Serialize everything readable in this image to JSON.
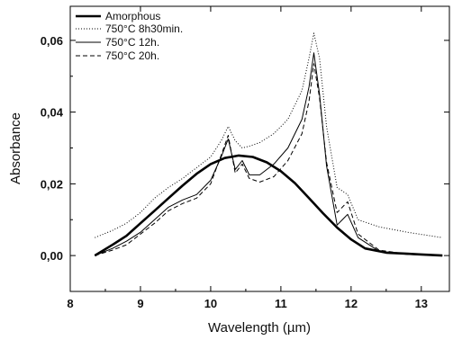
{
  "chart_data": {
    "type": "line",
    "title": "",
    "xlabel": "Wavelength (µm)",
    "ylabel": "Absorbance",
    "xlim": [
      8,
      13.4
    ],
    "ylim": [
      -0.01,
      0.0695
    ],
    "xticks": [
      8,
      9,
      10,
      11,
      12,
      13
    ],
    "xtick_labels": [
      "8",
      "9",
      "10",
      "11",
      "12",
      "13"
    ],
    "yticks": [
      0.0,
      0.02,
      0.04,
      0.06
    ],
    "ytick_labels": [
      "0,00",
      "0,02",
      "0,04",
      "0,06"
    ],
    "grid": false,
    "legend_position": "top-left",
    "series": [
      {
        "name": "Amorphous",
        "style": "thick-solid",
        "color": "#000000",
        "x": [
          8.35,
          8.6,
          8.8,
          9.0,
          9.2,
          9.4,
          9.6,
          9.8,
          10.0,
          10.2,
          10.4,
          10.6,
          10.8,
          11.0,
          11.2,
          11.4,
          11.6,
          11.8,
          12.0,
          12.2,
          12.5,
          12.8,
          13.0,
          13.3
        ],
        "y": [
          0.0,
          0.003,
          0.0055,
          0.009,
          0.0125,
          0.016,
          0.0195,
          0.0228,
          0.0255,
          0.0272,
          0.0279,
          0.0275,
          0.026,
          0.0235,
          0.0202,
          0.016,
          0.0118,
          0.0078,
          0.0045,
          0.002,
          0.0008,
          0.0005,
          0.0003,
          0.0
        ]
      },
      {
        "name": "750°C 8h30min.",
        "style": "dotted",
        "color": "#000000",
        "x": [
          8.35,
          8.6,
          8.8,
          9.0,
          9.2,
          9.4,
          9.6,
          9.8,
          10.0,
          10.15,
          10.25,
          10.35,
          10.45,
          10.55,
          10.7,
          10.9,
          11.1,
          11.3,
          11.4,
          11.47,
          11.55,
          11.65,
          11.8,
          11.95,
          12.1,
          12.4,
          12.8,
          13.3
        ],
        "y": [
          0.005,
          0.007,
          0.009,
          0.012,
          0.016,
          0.019,
          0.0215,
          0.0245,
          0.0275,
          0.032,
          0.036,
          0.032,
          0.03,
          0.0305,
          0.0315,
          0.034,
          0.038,
          0.046,
          0.055,
          0.062,
          0.055,
          0.036,
          0.019,
          0.017,
          0.01,
          0.008,
          0.0065,
          0.005
        ]
      },
      {
        "name": "750°C 12h.",
        "style": "solid",
        "color": "#000000",
        "x": [
          8.35,
          8.6,
          8.8,
          9.0,
          9.2,
          9.4,
          9.6,
          9.8,
          10.0,
          10.15,
          10.25,
          10.35,
          10.45,
          10.55,
          10.7,
          10.9,
          11.1,
          11.3,
          11.4,
          11.47,
          11.55,
          11.65,
          11.8,
          11.95,
          12.1,
          12.4,
          12.8,
          13.3
        ],
        "y": [
          0.0,
          0.002,
          0.004,
          0.0065,
          0.01,
          0.0135,
          0.0155,
          0.017,
          0.021,
          0.0275,
          0.0325,
          0.024,
          0.0265,
          0.0225,
          0.0225,
          0.0255,
          0.03,
          0.038,
          0.047,
          0.0565,
          0.045,
          0.025,
          0.0085,
          0.0115,
          0.005,
          0.0012,
          0.0003,
          0.0
        ]
      },
      {
        "name": "750°C 20h.",
        "style": "dashed",
        "color": "#000000",
        "x": [
          8.35,
          8.6,
          8.8,
          9.0,
          9.2,
          9.4,
          9.6,
          9.8,
          10.0,
          10.15,
          10.25,
          10.35,
          10.45,
          10.55,
          10.7,
          10.9,
          11.1,
          11.3,
          11.4,
          11.47,
          11.55,
          11.65,
          11.8,
          11.95,
          12.1,
          12.4,
          12.8,
          13.3
        ],
        "y": [
          0.0,
          0.0015,
          0.003,
          0.006,
          0.009,
          0.0125,
          0.0145,
          0.016,
          0.02,
          0.028,
          0.0335,
          0.023,
          0.0255,
          0.0215,
          0.0205,
          0.022,
          0.0265,
          0.034,
          0.043,
          0.0535,
          0.044,
          0.026,
          0.012,
          0.015,
          0.006,
          0.0015,
          0.0004,
          0.0
        ]
      }
    ]
  }
}
